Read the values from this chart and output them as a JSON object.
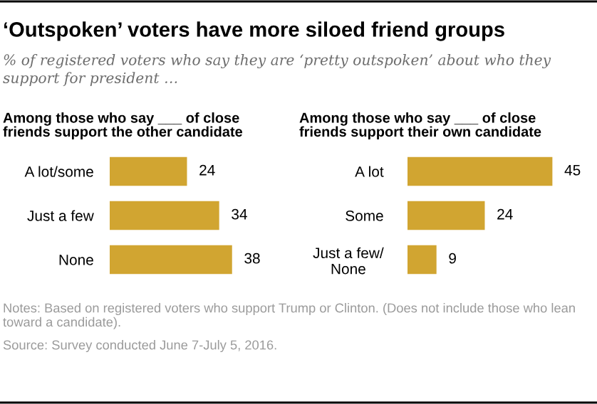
{
  "chart_data": [
    {
      "type": "other",
      "title": "‘Outspoken’ voters have more siloed friend groups",
      "subtitle": "% of registered voters who say they are ‘pretty outspoken’ about who they support for president …",
      "annotations": [
        "Notes: Based on registered voters who support Trump or Clinton. (Does not include those who lean toward a candidate).",
        "Source: Survey conducted June 7-July 5, 2016."
      ]
    },
    {
      "type": "bar",
      "orientation": "horizontal",
      "title": "Among those who say ___ of close\nfriends support the other candidate",
      "categories": [
        "A lot/some",
        "Just a few",
        "None"
      ],
      "values": [
        24,
        34,
        38
      ],
      "color": "#d1a531",
      "data_labels": true
    },
    {
      "type": "bar",
      "orientation": "horizontal",
      "title": "Among those who say ___ of close\nfriends support their own candidate",
      "categories": [
        "A lot",
        "Some",
        "Just a few/\nNone"
      ],
      "values": [
        45,
        24,
        9
      ],
      "color": "#d1a531",
      "data_labels": true
    }
  ]
}
